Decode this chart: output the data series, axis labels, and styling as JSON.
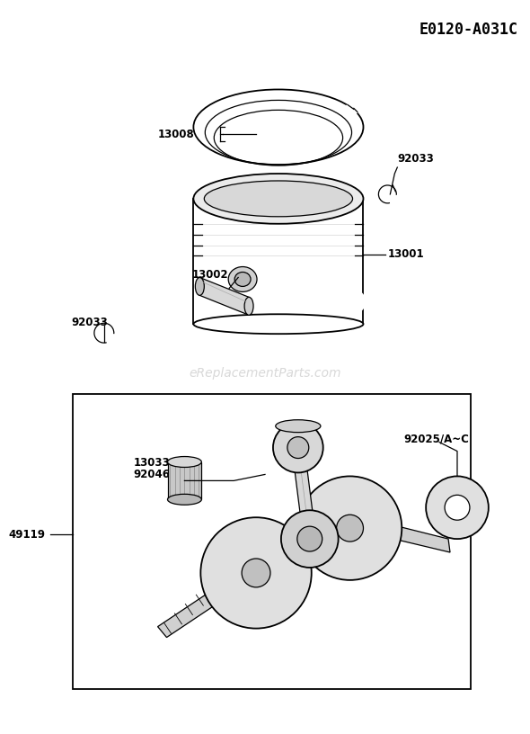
{
  "title_code": "E0120-A031C",
  "background_color": "#ffffff",
  "line_color": "#000000",
  "text_color": "#000000",
  "watermark": "eReplacementParts.com",
  "watermark_color": "#c8c8c8",
  "watermark_fontsize": 10,
  "title_fontsize": 12,
  "label_fontsize": 8.5,
  "fig_w": 5.9,
  "fig_h": 8.16,
  "dpi": 100
}
